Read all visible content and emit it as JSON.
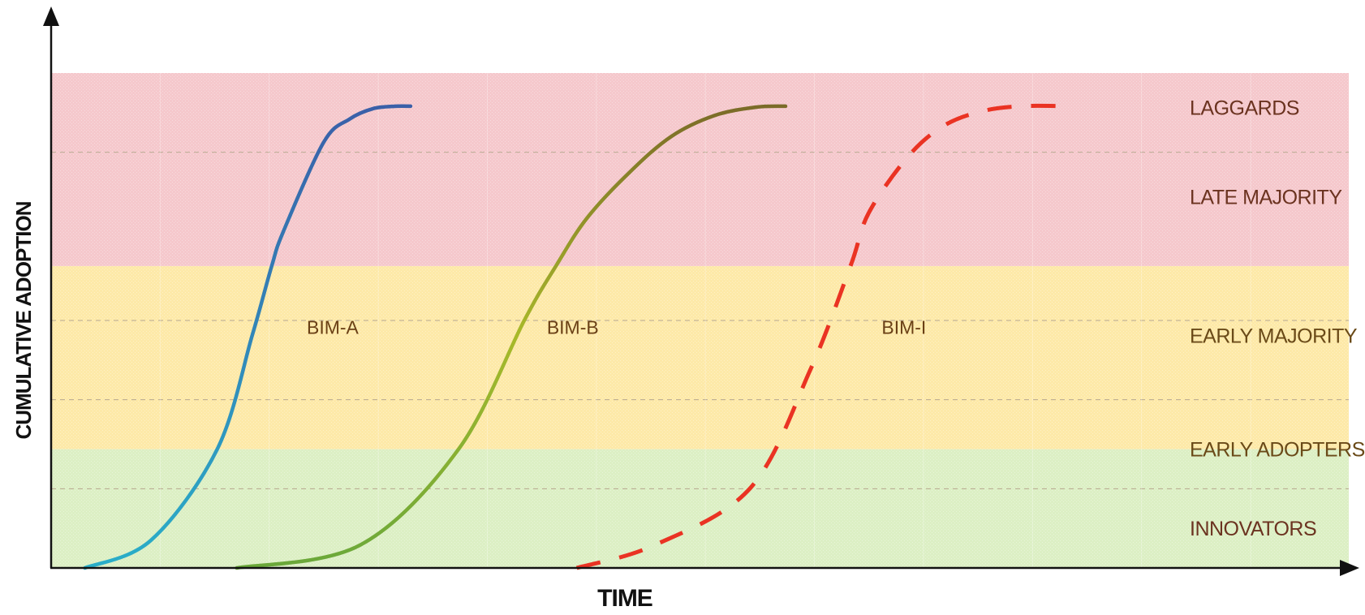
{
  "chart_data": {
    "type": "line",
    "title": "",
    "xlabel": "TIME",
    "ylabel": "CUMULATIVE ADOPTION",
    "xlim": [
      0,
      100
    ],
    "ylim": [
      0,
      100
    ],
    "grid": true,
    "bands": [
      {
        "name": "INNOVATORS",
        "from": 0,
        "to": 16,
        "color": "#dcefc4"
      },
      {
        "name": "EARLY ADOPTERS",
        "from": 16,
        "to": 34,
        "color": "#dcefc4"
      },
      {
        "name": "EARLY MAJORITY",
        "from": 34,
        "to": 50,
        "color": "#fde9a8"
      },
      {
        "name": "LATE MAJORITY",
        "from": 50,
        "to": 84,
        "color": "#f5c8cc"
      },
      {
        "name": "LAGGARDS",
        "from": 84,
        "to": 100,
        "color": "#f5c8cc"
      }
    ],
    "zones": [
      {
        "from": 0,
        "to": 24,
        "color": "#dcefc4"
      },
      {
        "from": 24,
        "to": 61,
        "color": "#fde9a8"
      },
      {
        "from": 61,
        "to": 100,
        "color": "#f5c8cc"
      }
    ],
    "band_label_positions": [
      8,
      24,
      47,
      75,
      93
    ],
    "series": [
      {
        "name": "BIM-A",
        "style": "solid",
        "gradient": [
          "#2aaec8",
          "#3a5fa8"
        ],
        "x": [
          2.6,
          7.7,
          12.8,
          15.5,
          17.0,
          17.9,
          21.0,
          23.0,
          24.8,
          26.6,
          27.7
        ],
        "y": [
          0.0,
          5.6,
          24.0,
          47.0,
          61.0,
          68.0,
          86.0,
          90.7,
          92.8,
          93.3,
          93.3
        ]
      },
      {
        "name": "BIM-B",
        "style": "solid",
        "gradient": [
          "#6aa83a",
          "#a8b92a",
          "#7a6a28"
        ],
        "x": [
          14.3,
          23.8,
          31.4,
          36.5,
          38.9,
          41.3,
          44.6,
          47.8,
          51.1,
          54.3,
          56.6
        ],
        "y": [
          0.0,
          4.6,
          24.0,
          50.2,
          61.0,
          70.7,
          80.0,
          87.2,
          91.4,
          93.1,
          93.3
        ]
      },
      {
        "name": "BIM-I",
        "style": "dashed",
        "color": "#ea3323",
        "x": [
          40.5,
          46.5,
          53.9,
          58.5,
          61.6,
          63.0,
          66.0,
          68.7,
          71.6,
          74.7,
          78.4
        ],
        "y": [
          0.0,
          4.6,
          16.2,
          40.0,
          61.0,
          71.7,
          83.0,
          89.2,
          92.2,
          93.3,
          93.3
        ]
      }
    ],
    "series_label_positions": [
      {
        "x": 19.7,
        "y": 48.6
      },
      {
        "x": 38.2,
        "y": 48.6
      },
      {
        "x": 64.0,
        "y": 48.6
      }
    ]
  }
}
